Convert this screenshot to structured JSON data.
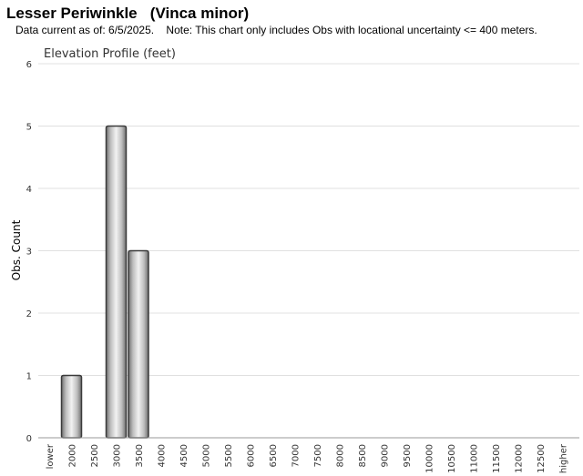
{
  "header": {
    "title": "Lesser Periwinkle   (Vinca minor)",
    "subtitle": "Data current as of: 6/5/2025.    Note: This chart only includes Obs with locational uncertainty <= 400 meters."
  },
  "chart_data": {
    "type": "bar",
    "title": "Elevation Profile (feet)",
    "xlabel": "",
    "ylabel": "Obs. Count",
    "categories": [
      "lower",
      "2000",
      "2500",
      "3000",
      "3500",
      "4000",
      "4500",
      "5000",
      "5500",
      "6000",
      "6500",
      "7000",
      "7500",
      "8000",
      "8500",
      "9000",
      "9500",
      "10000",
      "10500",
      "11000",
      "11500",
      "12000",
      "12500",
      "higher"
    ],
    "values": [
      0,
      1,
      0,
      5,
      3,
      0,
      0,
      0,
      0,
      0,
      0,
      0,
      0,
      0,
      0,
      0,
      0,
      0,
      0,
      0,
      0,
      0,
      0,
      0
    ],
    "ylim": [
      0,
      6
    ],
    "yticks": [
      0,
      1,
      2,
      3,
      4,
      5,
      6
    ],
    "grid": true,
    "bar_color": "#a8a8a8"
  }
}
